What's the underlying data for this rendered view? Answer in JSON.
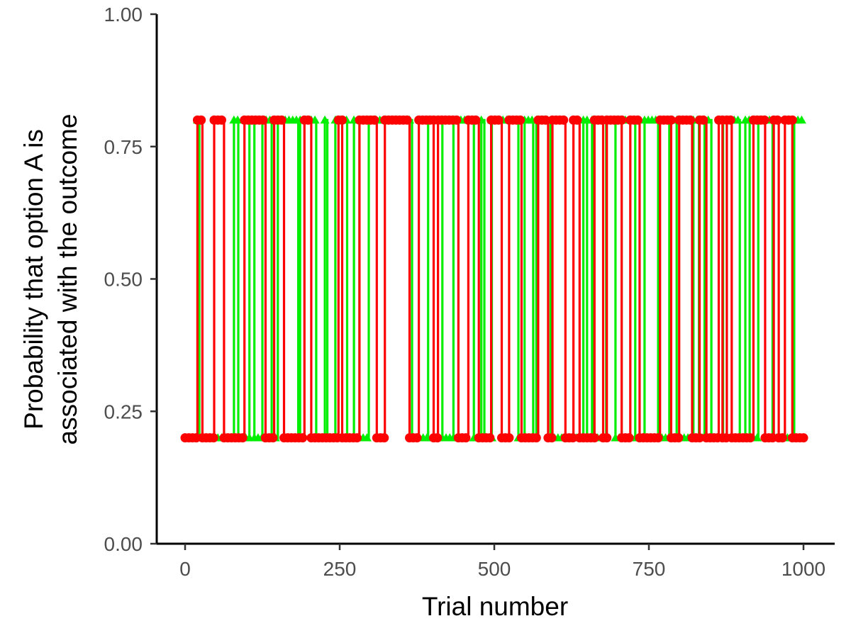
{
  "chart_data": {
    "type": "line",
    "title": "",
    "xlabel": "Trial number",
    "ylabel_lines": [
      "Probability that option A is",
      "associated with the outcome"
    ],
    "xlim": [
      -30,
      1000
    ],
    "ylim": [
      0,
      1
    ],
    "xticks": [
      0,
      250,
      500,
      750,
      1000
    ],
    "xtick_labels": [
      "0",
      "250",
      "500",
      "750",
      "1000"
    ],
    "yticks": [
      0,
      0.25,
      0.5,
      0.75,
      1.0
    ],
    "ytick_labels": [
      "0.00",
      "0.25",
      "0.50",
      "0.75",
      "1.00"
    ],
    "grid": false,
    "legend": "none",
    "series": [
      {
        "color": "#00ee00",
        "marker": "triangle",
        "low": 0.2,
        "high": 0.8,
        "start_state": "high",
        "start_x": 20,
        "end_x": 997,
        "switch_x": [
          23,
          79,
          86,
          104,
          112,
          125,
          140,
          150,
          183,
          186,
          212,
          226,
          230,
          243,
          262,
          273,
          282,
          297,
          367,
          393,
          416,
          434,
          467,
          479,
          484,
          496,
          539,
          549,
          563,
          568,
          591,
          644,
          650,
          658,
          661,
          681,
          696,
          706,
          728,
          743,
          765,
          783,
          795,
          822,
          831,
          840,
          851,
          870,
          897,
          906,
          913,
          927,
          950,
          985
        ]
      },
      {
        "color": "#ff0000",
        "marker": "circle",
        "low": 0.2,
        "high": 0.8,
        "start_state": "low",
        "start_x": 0,
        "end_x": 1000,
        "switch_x": [
          20,
          28,
          47,
          63,
          96,
          130,
          144,
          160,
          193,
          204,
          248,
          254,
          282,
          310,
          323,
          363,
          378,
          402,
          409,
          442,
          458,
          475,
          495,
          512,
          524,
          544,
          571,
          587,
          594,
          615,
          628,
          638,
          662,
          676,
          682,
          706,
          720,
          735,
          768,
          786,
          799,
          820,
          832,
          843,
          863,
          869,
          876,
          884,
          919,
          938,
          952,
          960,
          970,
          982
        ]
      }
    ]
  }
}
